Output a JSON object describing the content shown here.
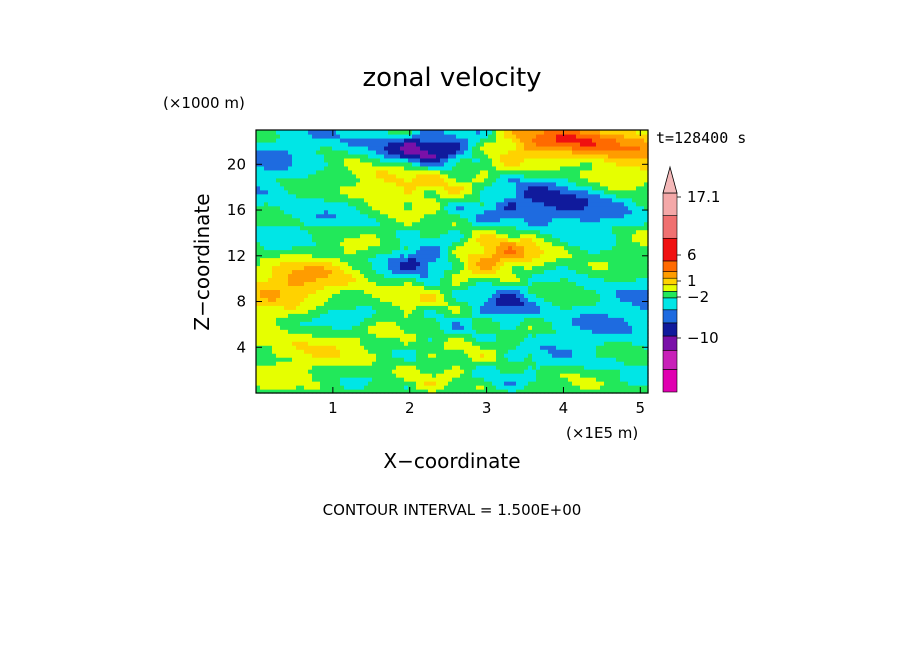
{
  "chart_data": {
    "type": "heatmap",
    "title": "zonal velocity",
    "xlabel": "X−coordinate",
    "ylabel": "Z−coordinate",
    "x_scale_label": "(×1E5 m)",
    "y_scale_label": "(×1000 m)",
    "time_label": "t=128400 s",
    "contour_interval_label": "CONTOUR INTERVAL = 1.500E+00",
    "xlim": [
      0,
      5.1
    ],
    "ylim": [
      0,
      23
    ],
    "x_ticks": [
      1,
      2,
      3,
      4,
      5
    ],
    "x_tick_labels": [
      "1",
      "2",
      "3",
      "4",
      "5"
    ],
    "y_ticks": [
      4,
      8,
      12,
      16,
      20
    ],
    "y_tick_labels": [
      "4",
      "8",
      "12",
      "16",
      "20"
    ],
    "colorbar": {
      "labels": [
        {
          "text": "17.1",
          "value": 17.1
        },
        {
          "text": "6",
          "value": 6
        },
        {
          "text": "1",
          "value": 1
        },
        {
          "text": "−2",
          "value": -2
        },
        {
          "text": "−10",
          "value": -10
        }
      ],
      "colors_bottom_to_top": [
        "#e000b0",
        "#c820b8",
        "#7a10a8",
        "#101a9c",
        "#1e6be0",
        "#00e6e6",
        "#22e85a",
        "#e6ff00",
        "#ffd200",
        "#ff9c00",
        "#ff6a00",
        "#f01010",
        "#f07070",
        "#f4a8a8"
      ],
      "triangle_color": "#f4b8b8"
    },
    "field_palette": [
      "#e000b0",
      "#7a10a8",
      "#101a9c",
      "#1e6be0",
      "#00e6e6",
      "#22e85a",
      "#e6ff00",
      "#ffd200",
      "#ff9c00",
      "#ff6a00",
      "#f01010"
    ]
  }
}
